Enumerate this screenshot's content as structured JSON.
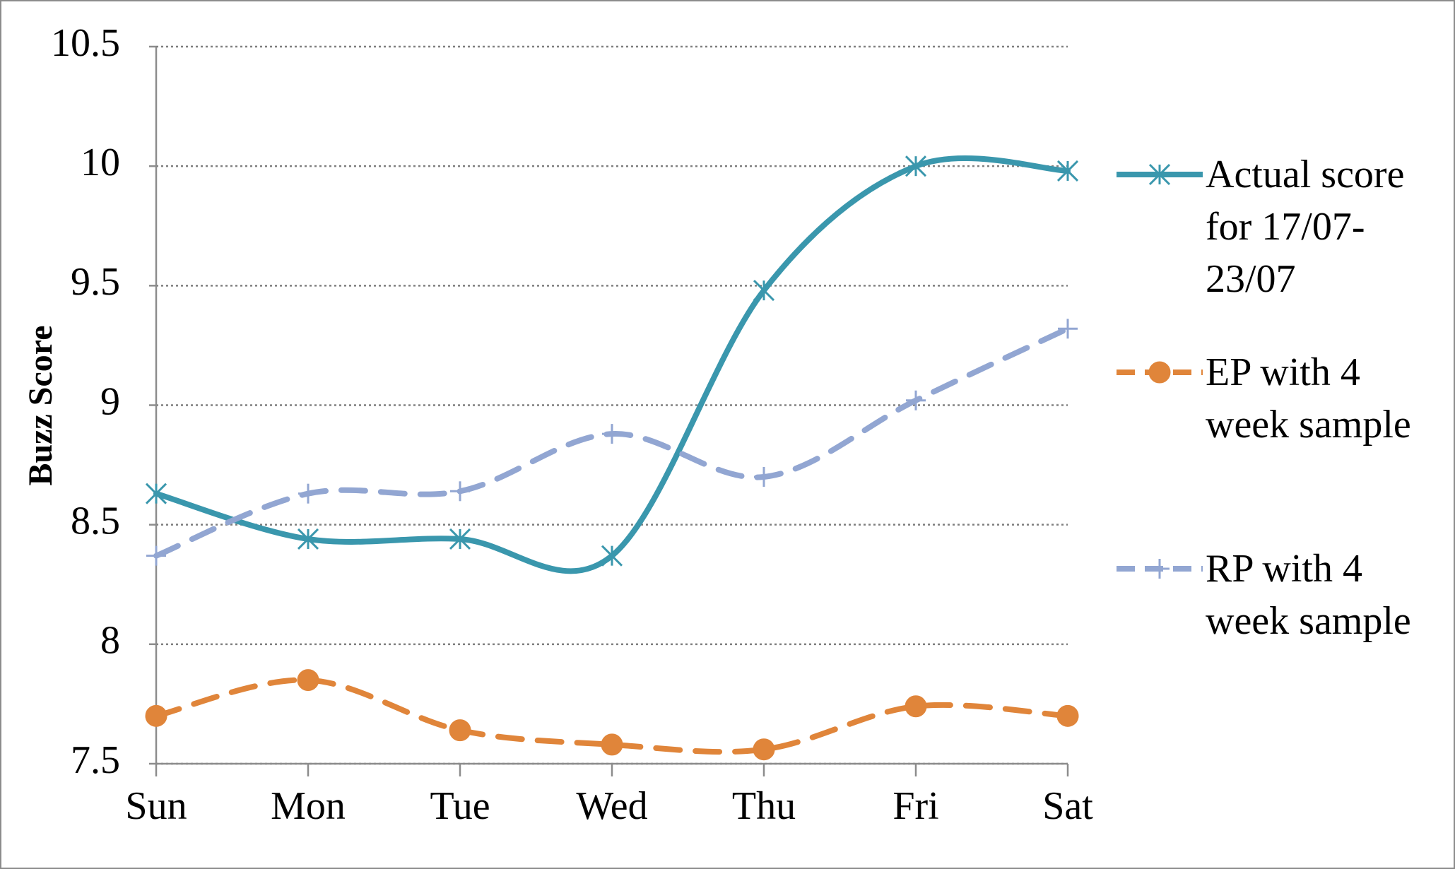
{
  "chart_data": {
    "type": "line",
    "y_label": "Buzz Score",
    "categories": [
      "Sun",
      "Mon",
      "Tue",
      "Wed",
      "Thu",
      "Fri",
      "Sat"
    ],
    "series": [
      {
        "name": "Actual score for 17/07-23/07",
        "color": "#3a97ad",
        "marker": "asterisk",
        "dashed": false,
        "values": [
          8.63,
          8.44,
          8.44,
          8.37,
          9.48,
          10.0,
          9.98
        ]
      },
      {
        "name": "EP with 4 week sample",
        "color": "#e0853a",
        "marker": "circle",
        "dashed": true,
        "values": [
          7.7,
          7.85,
          7.64,
          7.58,
          7.56,
          7.74,
          7.7
        ]
      },
      {
        "name": "RP with 4 week sample",
        "color": "#92a6d2",
        "marker": "plus",
        "dashed": true,
        "values": [
          8.37,
          8.63,
          8.64,
          8.88,
          8.7,
          9.02,
          9.32
        ]
      }
    ],
    "ylim": [
      7.5,
      10.5
    ],
    "yticks": [
      7.5,
      8,
      8.5,
      9,
      9.5,
      10,
      10.5
    ],
    "grid": true,
    "smooth": true,
    "legend": "right"
  }
}
